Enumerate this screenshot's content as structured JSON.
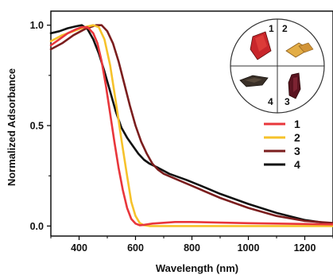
{
  "chart_data": {
    "type": "line",
    "xlabel": "Wavelength (nm)",
    "ylabel": "Normalized Adsorbance",
    "xlim": [
      300,
      1300
    ],
    "ylim": [
      -0.05,
      1.07
    ],
    "x_ticks": [
      400,
      600,
      800,
      1000,
      1200
    ],
    "x_tick_labels": [
      "400",
      "600",
      "800",
      "1000",
      "1200"
    ],
    "y_ticks": [
      0.0,
      0.5,
      1.0
    ],
    "y_tick_labels": [
      "0.0",
      "0.5",
      "1.0"
    ],
    "grid": false,
    "legend_position": "right",
    "series": [
      {
        "name": "1",
        "color": "#e8363b",
        "x": [
          300,
          330,
          360,
          390,
          410,
          430,
          450,
          465,
          480,
          495,
          510,
          525,
          540,
          555,
          570,
          585,
          600,
          615,
          630,
          660,
          700,
          740,
          800,
          900,
          1000,
          1100,
          1200,
          1300
        ],
        "y": [
          0.9,
          0.93,
          0.96,
          0.98,
          0.99,
          0.99,
          0.96,
          0.91,
          0.82,
          0.7,
          0.56,
          0.42,
          0.29,
          0.18,
          0.09,
          0.035,
          0.012,
          0.004,
          0.006,
          0.012,
          0.016,
          0.02,
          0.02,
          0.017,
          0.014,
          0.012,
          0.01,
          0.008
        ]
      },
      {
        "name": "2",
        "color": "#f6c22b",
        "x": [
          300,
          340,
          380,
          420,
          450,
          470,
          490,
          510,
          530,
          550,
          570,
          585,
          600,
          615,
          630,
          650,
          700,
          800,
          900,
          1000,
          1100,
          1200,
          1300
        ],
        "y": [
          0.92,
          0.95,
          0.97,
          0.99,
          1.0,
          0.99,
          0.93,
          0.8,
          0.62,
          0.43,
          0.25,
          0.12,
          0.05,
          0.015,
          0.004,
          0.0,
          0.0,
          0.0,
          0.0,
          0.0,
          0.0,
          0.0,
          0.0
        ]
      },
      {
        "name": "3",
        "color": "#7b1e1e",
        "x": [
          300,
          340,
          380,
          420,
          460,
          480,
          500,
          520,
          540,
          560,
          580,
          600,
          620,
          640,
          660,
          680,
          700,
          750,
          800,
          900,
          1000,
          1100,
          1200,
          1300
        ],
        "y": [
          0.88,
          0.91,
          0.95,
          0.98,
          1.0,
          1.0,
          0.97,
          0.91,
          0.82,
          0.71,
          0.6,
          0.5,
          0.42,
          0.36,
          0.31,
          0.28,
          0.26,
          0.23,
          0.2,
          0.14,
          0.09,
          0.05,
          0.025,
          0.015
        ]
      },
      {
        "name": "4",
        "color": "#111111",
        "x": [
          300,
          330,
          360,
          390,
          410,
          430,
          450,
          470,
          490,
          510,
          530,
          550,
          570,
          590,
          610,
          630,
          650,
          680,
          720,
          780,
          850,
          900,
          1000,
          1100,
          1200,
          1300
        ],
        "y": [
          0.96,
          0.97,
          0.985,
          0.995,
          1.0,
          0.98,
          0.93,
          0.86,
          0.77,
          0.67,
          0.57,
          0.49,
          0.44,
          0.4,
          0.36,
          0.33,
          0.31,
          0.29,
          0.26,
          0.23,
          0.19,
          0.16,
          0.11,
          0.065,
          0.03,
          0.01
        ]
      }
    ],
    "inset": {
      "quadrant_labels": [
        "1",
        "2",
        "3",
        "4"
      ]
    }
  }
}
